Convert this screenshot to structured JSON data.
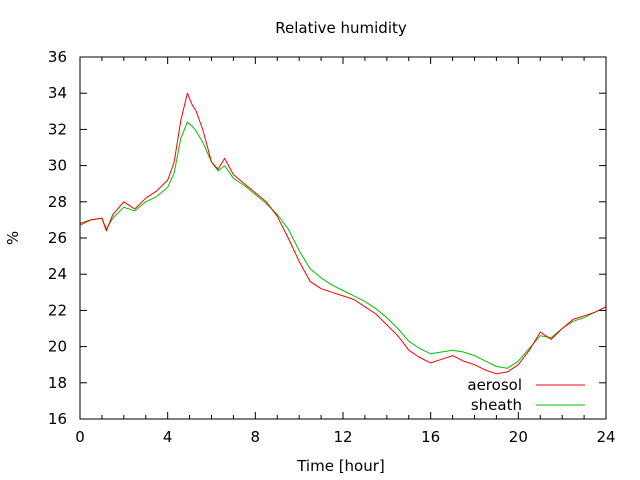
{
  "chart_data": {
    "type": "line",
    "title": "Relative humidity",
    "xlabel": "Time [hour]",
    "ylabel": "%",
    "xlim": [
      0,
      24
    ],
    "ylim": [
      16,
      36
    ],
    "x_ticks": [
      "0",
      "4",
      "8",
      "12",
      "16",
      "20",
      "24"
    ],
    "y_ticks": [
      "16",
      "18",
      "20",
      "22",
      "24",
      "26",
      "28",
      "30",
      "32",
      "34",
      "36"
    ],
    "grid": false,
    "legend_position": "bottom-right",
    "x": [
      0,
      0.5,
      1,
      1.2,
      1.5,
      2,
      2.5,
      3,
      3.5,
      4,
      4.3,
      4.6,
      4.9,
      5.1,
      5.3,
      5.6,
      6,
      6.3,
      6.6,
      7,
      7.5,
      8,
      8.5,
      9,
      9.5,
      10,
      10.5,
      11,
      11.5,
      12,
      12.5,
      13,
      13.5,
      14,
      14.5,
      15,
      15.5,
      16,
      16.5,
      17,
      17.5,
      18,
      18.5,
      19,
      19.5,
      20,
      20.5,
      21,
      21.5,
      22,
      22.5,
      23,
      23.5,
      24
    ],
    "series": [
      {
        "name": "aerosol",
        "color": "#ff0000",
        "values": [
          26.8,
          27.0,
          27.1,
          26.4,
          27.3,
          28.0,
          27.6,
          28.2,
          28.6,
          29.2,
          30.2,
          32.5,
          34.0,
          33.4,
          33.0,
          32.0,
          30.2,
          29.8,
          30.4,
          29.5,
          29.0,
          28.5,
          28.0,
          27.2,
          26.0,
          24.7,
          23.6,
          23.2,
          23.0,
          22.8,
          22.6,
          22.2,
          21.8,
          21.2,
          20.6,
          19.8,
          19.4,
          19.1,
          19.3,
          19.5,
          19.2,
          19.0,
          18.7,
          18.5,
          18.6,
          19.0,
          19.8,
          20.8,
          20.4,
          21.0,
          21.5,
          21.7,
          21.9,
          22.2
        ]
      },
      {
        "name": "sheath",
        "color": "#00c000",
        "values": [
          26.7,
          27.0,
          27.1,
          26.5,
          27.1,
          27.7,
          27.5,
          28.0,
          28.3,
          28.8,
          29.6,
          31.5,
          32.4,
          32.2,
          31.9,
          31.3,
          30.2,
          29.7,
          30.0,
          29.3,
          28.9,
          28.4,
          27.9,
          27.3,
          26.5,
          25.3,
          24.3,
          23.8,
          23.4,
          23.1,
          22.8,
          22.5,
          22.1,
          21.6,
          21.0,
          20.3,
          19.9,
          19.6,
          19.7,
          19.8,
          19.7,
          19.5,
          19.2,
          18.9,
          18.8,
          19.2,
          19.9,
          20.6,
          20.5,
          21.0,
          21.4,
          21.6,
          21.9,
          22.2
        ]
      }
    ]
  }
}
